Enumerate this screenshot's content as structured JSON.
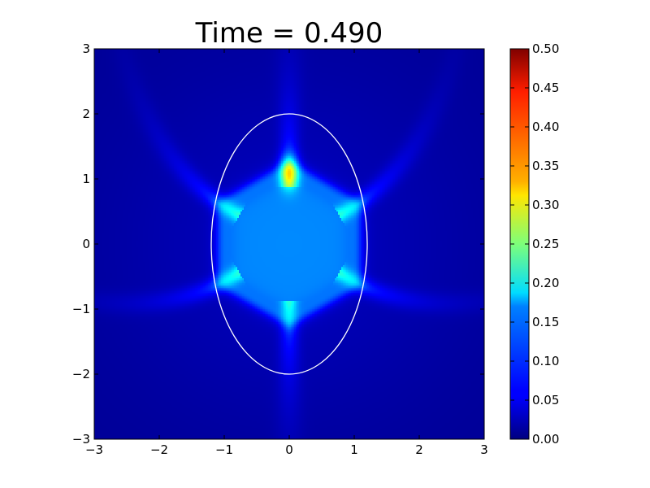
{
  "chart_data": {
    "type": "heatmap",
    "title": "Time = 0.490",
    "xlabel": "",
    "ylabel": "",
    "xlim": [
      -3,
      3
    ],
    "ylim": [
      -3,
      3
    ],
    "x_ticks": [
      "−3",
      "−2",
      "−1",
      "0",
      "1",
      "2",
      "3"
    ],
    "y_ticks": [
      "−3",
      "−2",
      "−1",
      "0",
      "1",
      "2",
      "3"
    ],
    "colormap": "jet",
    "colorbar": {
      "min": 0.0,
      "max": 0.5,
      "ticks": [
        "0.00",
        "0.05",
        "0.10",
        "0.15",
        "0.20",
        "0.25",
        "0.30",
        "0.35",
        "0.40",
        "0.45",
        "0.50"
      ]
    },
    "field_description": {
      "background_value": 0.01,
      "central_hexagon_value": 0.12,
      "hexagon_radius": 1.2,
      "arm_angles_deg": [
        90,
        30,
        150,
        -30,
        -150,
        -90
      ],
      "peak_value": 0.27,
      "peak_location": [
        0,
        1.1
      ]
    },
    "overlay_ellipse": {
      "center": [
        0,
        0
      ],
      "semi_axis_x": 1.2,
      "semi_axis_y": 2.0,
      "color": "#ffffff"
    },
    "grid": false
  }
}
